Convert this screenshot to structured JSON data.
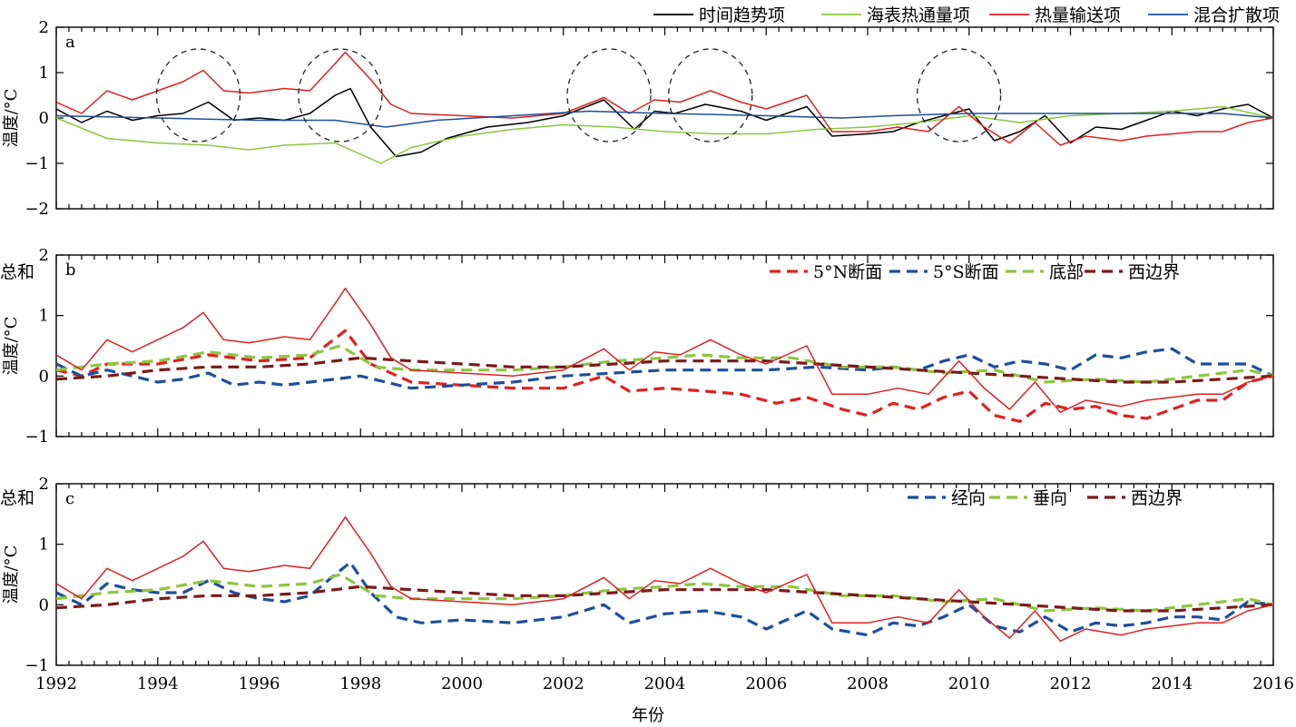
{
  "xaxis": {
    "label": "年份",
    "tick_labels": [
      "1992",
      "1994",
      "1996",
      "1998",
      "2000",
      "2002",
      "2004",
      "2006",
      "2008",
      "2010",
      "2012",
      "2014",
      "2016"
    ],
    "range": [
      1992,
      2016
    ]
  },
  "chart_data": [
    {
      "type": "line",
      "panel_label": "a",
      "ylabel": "温度/°C",
      "ylim": [
        -2,
        2
      ],
      "yticks": [
        "2",
        "1",
        "0",
        "−1",
        "−2"
      ],
      "legend_position": "top-right",
      "circles_dashed_centers_x": [
        1994.8,
        1997.6,
        2002.9,
        2004.9,
        2009.8
      ],
      "series": [
        {
          "name": "时间趋势项",
          "color": "#000000",
          "style": "solid",
          "x": [
            1992,
            1992.5,
            1993,
            1993.5,
            1994,
            1994.5,
            1995,
            1995.5,
            1996,
            1996.5,
            1997,
            1997.5,
            1997.8,
            1998.2,
            1998.7,
            1999.2,
            1999.7,
            2000.5,
            2001.3,
            2002,
            2002.8,
            2003.4,
            2003.8,
            2004.2,
            2004.8,
            2005.5,
            2006,
            2006.8,
            2007.3,
            2008,
            2008.5,
            2009,
            2009.5,
            2010,
            2010.5,
            2011,
            2011.5,
            2012,
            2012.5,
            2013,
            2013.5,
            2014,
            2014.5,
            2015,
            2015.5,
            2016
          ],
          "y": [
            0.2,
            -0.1,
            0.15,
            -0.05,
            0.05,
            0.1,
            0.35,
            -0.05,
            0,
            -0.05,
            0.1,
            0.5,
            0.65,
            -0.2,
            -0.85,
            -0.75,
            -0.45,
            -0.2,
            -0.1,
            0.05,
            0.4,
            -0.25,
            0.15,
            0.1,
            0.3,
            0.15,
            -0.05,
            0.25,
            -0.4,
            -0.35,
            -0.3,
            -0.1,
            0.05,
            0.2,
            -0.5,
            -0.3,
            0.05,
            -0.55,
            -0.2,
            -0.25,
            -0.05,
            0.15,
            0.05,
            0.2,
            0.3,
            0
          ]
        },
        {
          "name": "海表热通量项",
          "color": "#8dc63f",
          "style": "solid",
          "x": [
            1992,
            1993,
            1994,
            1995,
            1995.8,
            1996.5,
            1997.5,
            1998.4,
            1999,
            2000,
            2001,
            2002,
            2003,
            2004,
            2005,
            2006,
            2007,
            2008,
            2009,
            2010,
            2011,
            2012,
            2013,
            2014,
            2015,
            2016
          ],
          "y": [
            0,
            -0.45,
            -0.55,
            -0.6,
            -0.7,
            -0.6,
            -0.55,
            -1.0,
            -0.65,
            -0.4,
            -0.25,
            -0.15,
            -0.2,
            -0.3,
            -0.35,
            -0.35,
            -0.25,
            -0.2,
            -0.1,
            0.05,
            -0.1,
            0.05,
            0.1,
            0.15,
            0.25,
            0
          ]
        },
        {
          "name": "热量输送项",
          "color": "#e02020",
          "style": "solid",
          "x": [
            1992,
            1992.5,
            1993,
            1993.5,
            1994,
            1994.5,
            1994.9,
            1995.3,
            1995.8,
            1996.5,
            1997,
            1997.5,
            1997.7,
            1998.2,
            1998.6,
            1999,
            2000,
            2001,
            2002,
            2002.8,
            2003.3,
            2003.8,
            2004.3,
            2004.9,
            2005.5,
            2006,
            2006.8,
            2007.3,
            2008,
            2008.6,
            2009.2,
            2009.8,
            2010.3,
            2010.8,
            2011.3,
            2011.8,
            2012.3,
            2013,
            2013.5,
            2014,
            2014.5,
            2015,
            2015.5,
            2016
          ],
          "y": [
            0.35,
            0.1,
            0.6,
            0.4,
            0.6,
            0.8,
            1.05,
            0.6,
            0.55,
            0.65,
            0.6,
            1.2,
            1.45,
            0.85,
            0.3,
            0.1,
            0.05,
            0.0,
            0.1,
            0.45,
            0.1,
            0.4,
            0.35,
            0.6,
            0.35,
            0.2,
            0.5,
            -0.3,
            -0.3,
            -0.2,
            -0.3,
            0.25,
            -0.2,
            -0.55,
            -0.1,
            -0.6,
            -0.4,
            -0.5,
            -0.4,
            -0.35,
            -0.3,
            -0.3,
            -0.1,
            0
          ]
        },
        {
          "name": "混合扩散项",
          "color": "#1f4e9c",
          "style": "solid",
          "x": [
            1992,
            1994,
            1996,
            1997.5,
            1998.5,
            1999.5,
            2001,
            2002.5,
            2004,
            2006,
            2007.5,
            2008.5,
            2010,
            2011,
            2012,
            2013,
            2014,
            2015,
            2016
          ],
          "y": [
            0.05,
            0,
            -0.05,
            -0.05,
            -0.2,
            -0.05,
            0.05,
            0.15,
            0.1,
            0.05,
            0,
            0.05,
            0.1,
            0.1,
            0.1,
            0.1,
            0.1,
            0.1,
            0
          ]
        }
      ]
    },
    {
      "type": "line",
      "panel_label": "b",
      "ylabel": "温度/°C",
      "ylim": [
        -1,
        2
      ],
      "yticks": [
        "2",
        "1",
        "0",
        "−1"
      ],
      "legend_position": "top-right",
      "series": [
        {
          "name": "5°N断面",
          "color": "#e02020",
          "style": "dashed",
          "x": [
            1992,
            1992.5,
            1993,
            1994,
            1995,
            1996,
            1997,
            1997.7,
            1998.2,
            1999,
            2000,
            2001,
            2002,
            2002.8,
            2003.3,
            2004,
            2004.8,
            2005.5,
            2006.2,
            2006.8,
            2007.5,
            2008,
            2008.5,
            2009,
            2009.5,
            2010,
            2010.5,
            2011,
            2011.5,
            2012,
            2012.5,
            2013,
            2013.5,
            2014,
            2014.5,
            2015,
            2015.5,
            2016
          ],
          "y": [
            0.1,
            0,
            0.2,
            0.2,
            0.35,
            0.25,
            0.3,
            0.75,
            0.2,
            -0.1,
            -0.15,
            -0.2,
            -0.2,
            0.0,
            -0.25,
            -0.2,
            -0.25,
            -0.3,
            -0.45,
            -0.35,
            -0.55,
            -0.65,
            -0.45,
            -0.55,
            -0.35,
            -0.25,
            -0.65,
            -0.75,
            -0.45,
            -0.55,
            -0.5,
            -0.65,
            -0.7,
            -0.55,
            -0.4,
            -0.4,
            -0.1,
            0
          ]
        },
        {
          "name": "5°S断面",
          "color": "#1f4e9c",
          "style": "dashed",
          "x": [
            1992,
            1992.5,
            1993,
            1993.5,
            1994,
            1994.5,
            1995,
            1995.5,
            1996,
            1996.5,
            1997,
            1997.5,
            1998,
            1998.5,
            1999,
            2000,
            2001,
            2002,
            2003,
            2004,
            2005,
            2006,
            2007,
            2008,
            2008.5,
            2009,
            2009.5,
            2010,
            2010.5,
            2011,
            2011.5,
            2012,
            2012.5,
            2013,
            2013.5,
            2014,
            2014.5,
            2015,
            2015.5,
            2016
          ],
          "y": [
            0.2,
            0,
            0.1,
            0.0,
            -0.1,
            -0.05,
            0.05,
            -0.15,
            -0.1,
            -0.15,
            -0.1,
            -0.05,
            0.0,
            -0.1,
            -0.2,
            -0.15,
            -0.1,
            0.0,
            0.05,
            0.1,
            0.1,
            0.1,
            0.15,
            0.1,
            0.15,
            0.1,
            0.25,
            0.35,
            0.15,
            0.25,
            0.2,
            0.1,
            0.35,
            0.3,
            0.4,
            0.45,
            0.2,
            0.2,
            0.2,
            0
          ]
        },
        {
          "name": "底部",
          "color": "#8dc63f",
          "style": "dashed",
          "x": [
            1992,
            1993,
            1994,
            1995,
            1996,
            1997,
            1997.6,
            1998.3,
            1999,
            2000,
            2001,
            2002,
            2003,
            2004,
            2004.7,
            2005.5,
            2006.5,
            2007.5,
            2008.5,
            2009.5,
            2010.5,
            2011.5,
            2012.5,
            2013.5,
            2014.5,
            2015.5,
            2016
          ],
          "y": [
            0.1,
            0.2,
            0.25,
            0.4,
            0.3,
            0.35,
            0.5,
            0.15,
            0.1,
            0.1,
            0.1,
            0.15,
            0.25,
            0.3,
            0.35,
            0.3,
            0.3,
            0.15,
            0.15,
            0.05,
            0.1,
            -0.1,
            -0.05,
            -0.1,
            0.0,
            0.1,
            0
          ]
        },
        {
          "name": "西边界",
          "color": "#7a1a1a",
          "style": "dashed",
          "x": [
            1992,
            1993,
            1994,
            1995,
            1996,
            1997,
            1998,
            1999,
            2000,
            2001,
            2002,
            2003,
            2004,
            2005,
            2006,
            2007,
            2008,
            2009,
            2010,
            2011,
            2012,
            2013,
            2014,
            2015,
            2016
          ],
          "y": [
            -0.05,
            0.0,
            0.1,
            0.15,
            0.15,
            0.2,
            0.3,
            0.25,
            0.2,
            0.15,
            0.15,
            0.2,
            0.25,
            0.25,
            0.25,
            0.2,
            0.15,
            0.1,
            0.05,
            0.0,
            -0.05,
            -0.1,
            -0.1,
            -0.05,
            0
          ]
        },
        {
          "name": "总和",
          "color": "#e02020",
          "style": "solid",
          "x": [
            1992,
            1992.5,
            1993,
            1993.5,
            1994,
            1994.5,
            1994.9,
            1995.3,
            1995.8,
            1996.5,
            1997,
            1997.5,
            1997.7,
            1998.2,
            1998.6,
            1999,
            2000,
            2001,
            2002,
            2002.8,
            2003.3,
            2003.8,
            2004.3,
            2004.9,
            2005.5,
            2006,
            2006.8,
            2007.3,
            2008,
            2008.6,
            2009.2,
            2009.8,
            2010.3,
            2010.8,
            2011.3,
            2011.8,
            2012.3,
            2013,
            2013.5,
            2014,
            2014.5,
            2015,
            2015.5,
            2016
          ],
          "y": [
            0.35,
            0.1,
            0.6,
            0.4,
            0.6,
            0.8,
            1.05,
            0.6,
            0.55,
            0.65,
            0.6,
            1.2,
            1.45,
            0.85,
            0.3,
            0.1,
            0.05,
            0.0,
            0.1,
            0.45,
            0.1,
            0.4,
            0.35,
            0.6,
            0.35,
            0.2,
            0.5,
            -0.3,
            -0.3,
            -0.2,
            -0.3,
            0.25,
            -0.2,
            -0.55,
            -0.1,
            -0.6,
            -0.4,
            -0.5,
            -0.4,
            -0.35,
            -0.3,
            -0.3,
            -0.1,
            0
          ]
        }
      ]
    },
    {
      "type": "line",
      "panel_label": "c",
      "ylabel": "温度/°C",
      "ylim": [
        -1,
        2
      ],
      "yticks": [
        "2",
        "1",
        "0",
        "−1"
      ],
      "legend_position": "top-right",
      "series": [
        {
          "name": "经向",
          "color": "#1f4e9c",
          "style": "dashed",
          "x": [
            1992,
            1992.5,
            1993,
            1993.5,
            1994,
            1994.5,
            1995,
            1995.5,
            1996,
            1996.5,
            1997,
            1997.5,
            1997.8,
            1998.2,
            1998.7,
            1999.2,
            2000,
            2001,
            2002,
            2002.8,
            2003.3,
            2004,
            2004.8,
            2005.5,
            2006,
            2006.8,
            2007.3,
            2008,
            2008.5,
            2009,
            2009.5,
            2010,
            2010.5,
            2011,
            2011.5,
            2012,
            2012.5,
            2013,
            2013.5,
            2014,
            2014.5,
            2015,
            2015.5,
            2016
          ],
          "y": [
            0.2,
            0,
            0.35,
            0.25,
            0.2,
            0.2,
            0.4,
            0.2,
            0.1,
            0.05,
            0.15,
            0.5,
            0.7,
            0.2,
            -0.2,
            -0.3,
            -0.25,
            -0.3,
            -0.2,
            0.0,
            -0.3,
            -0.15,
            -0.1,
            -0.2,
            -0.4,
            -0.1,
            -0.4,
            -0.5,
            -0.3,
            -0.35,
            -0.2,
            0.0,
            -0.35,
            -0.45,
            -0.2,
            -0.45,
            -0.3,
            -0.35,
            -0.3,
            -0.2,
            -0.2,
            -0.25,
            0.05,
            0
          ]
        },
        {
          "name": "垂向",
          "color": "#8dc63f",
          "style": "dashed",
          "x": [
            1992,
            1993,
            1994,
            1995,
            1996,
            1997,
            1997.6,
            1998.3,
            1999,
            2000,
            2001,
            2002,
            2003,
            2004,
            2004.7,
            2005.5,
            2006.5,
            2007.5,
            2008.5,
            2009.5,
            2010.5,
            2011.5,
            2012.5,
            2013.5,
            2014.5,
            2015.5,
            2016
          ],
          "y": [
            0.1,
            0.2,
            0.25,
            0.4,
            0.3,
            0.35,
            0.5,
            0.15,
            0.1,
            0.1,
            0.1,
            0.15,
            0.25,
            0.3,
            0.35,
            0.3,
            0.3,
            0.15,
            0.15,
            0.05,
            0.1,
            -0.1,
            -0.05,
            -0.1,
            0.0,
            0.1,
            0
          ]
        },
        {
          "name": "西边界",
          "color": "#7a1a1a",
          "style": "dashed",
          "x": [
            1992,
            1993,
            1994,
            1995,
            1996,
            1997,
            1998,
            1999,
            2000,
            2001,
            2002,
            2003,
            2004,
            2005,
            2006,
            2007,
            2008,
            2009,
            2010,
            2011,
            2012,
            2013,
            2014,
            2015,
            2016
          ],
          "y": [
            -0.05,
            0.0,
            0.1,
            0.15,
            0.15,
            0.2,
            0.3,
            0.25,
            0.2,
            0.15,
            0.15,
            0.2,
            0.25,
            0.25,
            0.25,
            0.2,
            0.15,
            0.1,
            0.05,
            0.0,
            -0.05,
            -0.1,
            -0.1,
            -0.05,
            0
          ]
        },
        {
          "name": "总和",
          "color": "#e02020",
          "style": "solid",
          "x": [
            1992,
            1992.5,
            1993,
            1993.5,
            1994,
            1994.5,
            1994.9,
            1995.3,
            1995.8,
            1996.5,
            1997,
            1997.5,
            1997.7,
            1998.2,
            1998.6,
            1999,
            2000,
            2001,
            2002,
            2002.8,
            2003.3,
            2003.8,
            2004.3,
            2004.9,
            2005.5,
            2006,
            2006.8,
            2007.3,
            2008,
            2008.6,
            2009.2,
            2009.8,
            2010.3,
            2010.8,
            2011.3,
            2011.8,
            2012.3,
            2013,
            2013.5,
            2014,
            2014.5,
            2015,
            2015.5,
            2016
          ],
          "y": [
            0.35,
            0.1,
            0.6,
            0.4,
            0.6,
            0.8,
            1.05,
            0.6,
            0.55,
            0.65,
            0.6,
            1.2,
            1.45,
            0.85,
            0.3,
            0.1,
            0.05,
            0.0,
            0.1,
            0.45,
            0.1,
            0.4,
            0.35,
            0.6,
            0.35,
            0.2,
            0.5,
            -0.3,
            -0.3,
            -0.2,
            -0.3,
            0.25,
            -0.2,
            -0.55,
            -0.1,
            -0.6,
            -0.4,
            -0.5,
            -0.4,
            -0.35,
            -0.3,
            -0.3,
            -0.1,
            0
          ]
        }
      ]
    }
  ]
}
